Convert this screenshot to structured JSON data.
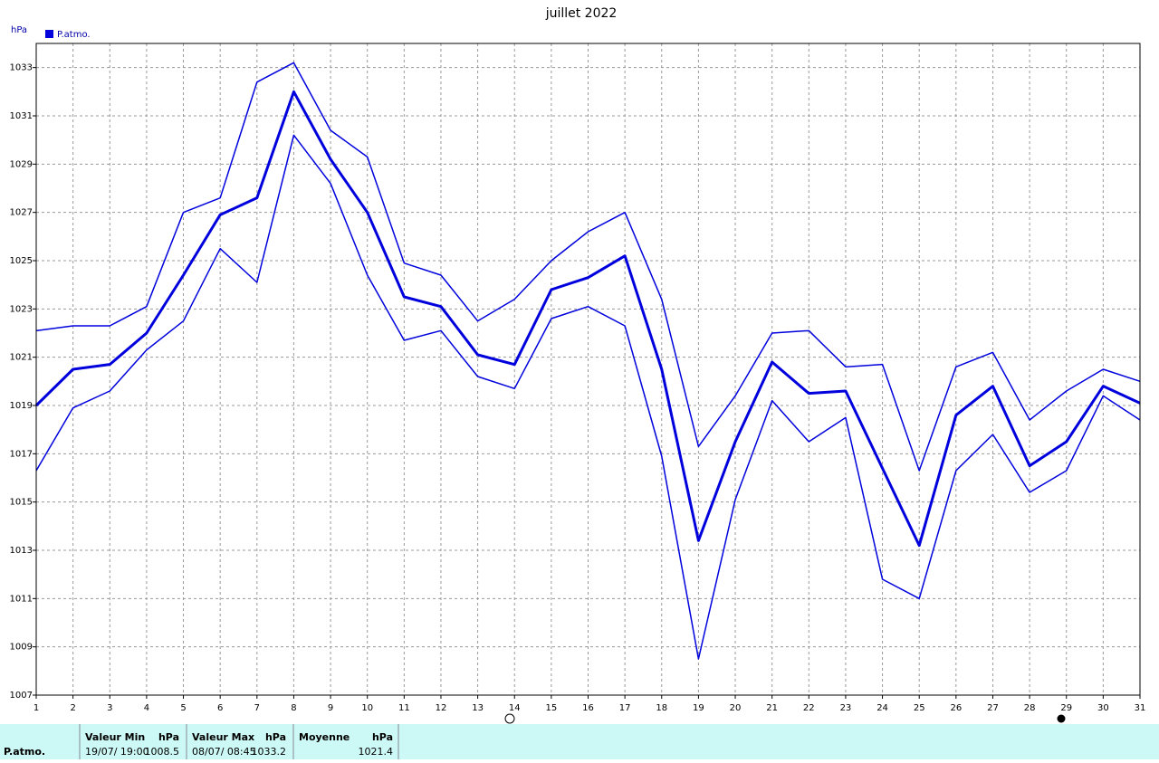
{
  "chart_data": {
    "type": "line",
    "title": "juillet 2022",
    "y_unit": "hPa",
    "x": [
      1,
      2,
      3,
      4,
      5,
      6,
      7,
      8,
      9,
      10,
      11,
      12,
      13,
      14,
      15,
      16,
      17,
      18,
      19,
      20,
      21,
      22,
      23,
      24,
      25,
      26,
      27,
      28,
      29,
      30,
      31
    ],
    "xlim": [
      1,
      31
    ],
    "ylim": [
      1007,
      1034
    ],
    "yticks": [
      1007,
      1009,
      1011,
      1013,
      1015,
      1017,
      1019,
      1021,
      1023,
      1025,
      1027,
      1029,
      1031,
      1033
    ],
    "grid": true,
    "series": [
      {
        "name": "P.atmo.",
        "color": "#0000dd",
        "values": [
          1019.0,
          1020.5,
          1020.7,
          1022.0,
          1024.4,
          1026.9,
          1027.6,
          1032.0,
          1029.2,
          1027.0,
          1023.5,
          1023.1,
          1021.1,
          1020.7,
          1023.8,
          1024.3,
          1025.2,
          1020.5,
          1013.4,
          1017.5,
          1020.8,
          1019.5,
          1019.6,
          1016.4,
          1013.2,
          1018.6,
          1019.8,
          1016.5,
          1017.5,
          1019.8,
          1019.1
        ],
        "high": [
          1022.1,
          1022.3,
          1022.3,
          1023.1,
          1027.0,
          1027.6,
          1032.4,
          1033.2,
          1030.4,
          1029.3,
          1024.9,
          1024.4,
          1022.5,
          1023.4,
          1025.0,
          1026.2,
          1027.0,
          1023.4,
          1017.3,
          1019.4,
          1022.0,
          1022.1,
          1020.6,
          1020.7,
          1016.3,
          1020.6,
          1021.2,
          1018.4,
          1019.6,
          1020.5,
          1020.0
        ],
        "low": [
          1016.3,
          1018.9,
          1019.6,
          1021.3,
          1022.5,
          1025.5,
          1024.1,
          1030.2,
          1028.2,
          1024.4,
          1021.7,
          1022.1,
          1020.2,
          1019.7,
          1022.6,
          1023.1,
          1022.3,
          1016.9,
          1008.5,
          1015.1,
          1019.2,
          1017.5,
          1018.5,
          1011.8,
          1011.0,
          1016.3,
          1017.8,
          1015.4,
          1016.3,
          1019.4,
          1018.4
        ]
      }
    ]
  },
  "stats": {
    "label": "P.atmo.",
    "min": {
      "title": "Valeur Min",
      "unit": "hPa",
      "date": "19/07/ 19:00",
      "value": "1008.5"
    },
    "max": {
      "title": "Valeur Max",
      "unit": "hPa",
      "date": "08/07/ 08:45",
      "value": "1033.2"
    },
    "mean": {
      "title": "Moyenne",
      "unit": "hPa",
      "value": "1021.4"
    }
  }
}
